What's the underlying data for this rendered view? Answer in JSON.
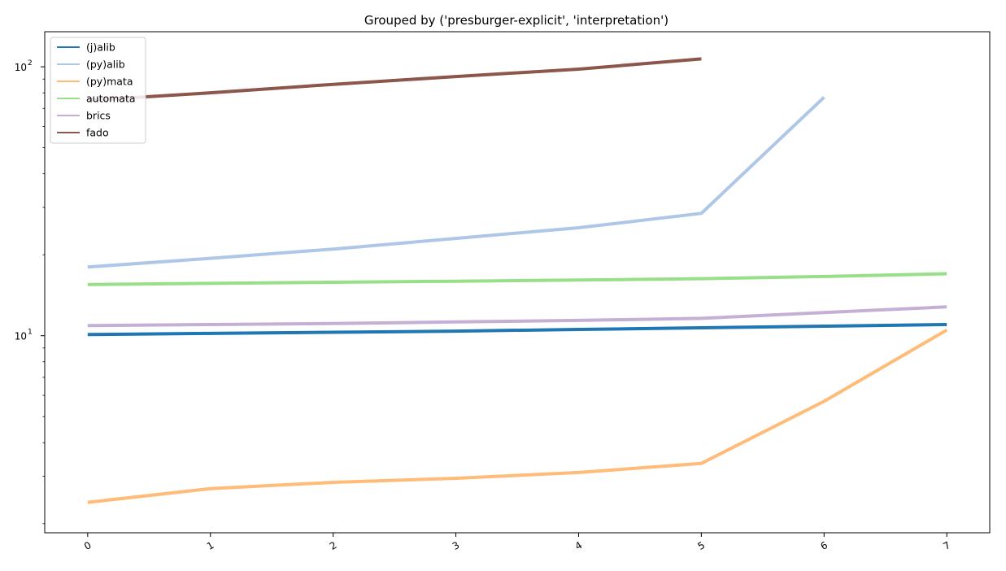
{
  "chart_data": {
    "type": "line",
    "title": "Grouped by ('presburger-explicit', 'interpretation')",
    "xlabel": "",
    "ylabel": "",
    "yscale": "log",
    "ylim": [
      1.85,
      135
    ],
    "xlim": [
      -0.35,
      7.35
    ],
    "x_ticks": [
      "0",
      "1",
      "2",
      "3",
      "4",
      "5",
      "6",
      "7"
    ],
    "y_ticks": [
      {
        "value": 10,
        "base": "10",
        "exp": "1"
      },
      {
        "value": 100,
        "base": "10",
        "exp": "2"
      }
    ],
    "legend": "top-left",
    "grid": false,
    "series": [
      {
        "name": "(j)alib",
        "color": "#1f77b4",
        "x": [
          0,
          1,
          2,
          3,
          4,
          5,
          6,
          7
        ],
        "values": [
          10.1,
          10.2,
          10.3,
          10.4,
          10.55,
          10.7,
          10.85,
          11.0
        ]
      },
      {
        "name": "(py)alib",
        "color": "#aec7e8",
        "x": [
          0,
          1,
          2,
          3,
          4,
          5,
          6
        ],
        "values": [
          18.0,
          19.4,
          21.0,
          23.0,
          25.2,
          28.5,
          77.0
        ]
      },
      {
        "name": "(py)mata",
        "color": "#ffbb78",
        "x": [
          0,
          1,
          2,
          3,
          4,
          5,
          6,
          7
        ],
        "values": [
          2.4,
          2.7,
          2.85,
          2.95,
          3.1,
          3.35,
          5.7,
          10.5
        ]
      },
      {
        "name": "automata",
        "color": "#98df8a",
        "x": [
          0,
          1,
          2,
          3,
          4,
          5,
          6,
          7
        ],
        "values": [
          15.5,
          15.65,
          15.8,
          15.95,
          16.1,
          16.3,
          16.6,
          17.0
        ]
      },
      {
        "name": "brics",
        "color": "#c5b0d5",
        "x": [
          0,
          1,
          2,
          3,
          4,
          5,
          6,
          7
        ],
        "values": [
          10.9,
          11.0,
          11.1,
          11.25,
          11.4,
          11.6,
          12.2,
          12.8
        ]
      },
      {
        "name": "fado",
        "color": "#8c564b",
        "x": [
          0,
          1,
          2,
          3,
          4,
          5
        ],
        "values": [
          75.0,
          80.0,
          86.0,
          92.0,
          98.0,
          107.0
        ]
      }
    ]
  }
}
